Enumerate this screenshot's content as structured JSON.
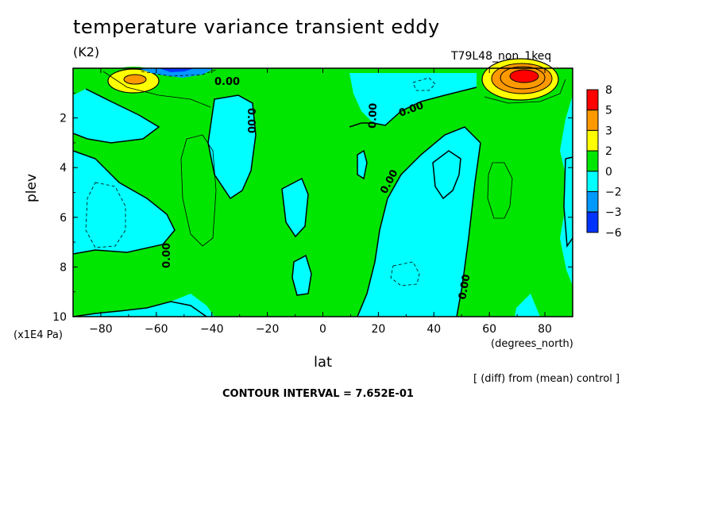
{
  "chart_data": {
    "type": "heatmap",
    "title": "temperature variance transient eddy",
    "units": "(K2)",
    "run_id": "T79L48_non_1keq",
    "xlabel": "lat",
    "x_units": "(degrees_north)",
    "ylabel": "plev",
    "y_units": "(x1E4 Pa)",
    "xlim": [
      -90,
      90
    ],
    "ylim": [
      10,
      0
    ],
    "x_ticks": [
      "-80",
      "-60",
      "-40",
      "-20",
      "0",
      "20",
      "40",
      "60",
      "80"
    ],
    "y_ticks": [
      "2",
      "4",
      "6",
      "8",
      "10"
    ],
    "colorbar": {
      "levels": [
        "8",
        "5",
        "3",
        "2",
        "0",
        "-2",
        "-3",
        "-6"
      ],
      "colors": [
        "#ff0000",
        "#ff9900",
        "#ffff00",
        "#00e600",
        "#00ffff",
        "#0099ff",
        "#0033ff"
      ]
    },
    "contour_labels": [
      "0.00",
      "0.00",
      "0.00",
      "0.00",
      "0.00",
      "0.00",
      "0.00"
    ],
    "note": "[ (diff) from (mean) control ]",
    "contour_interval": "CONTOUR INTERVAL = 7.652E-01"
  }
}
